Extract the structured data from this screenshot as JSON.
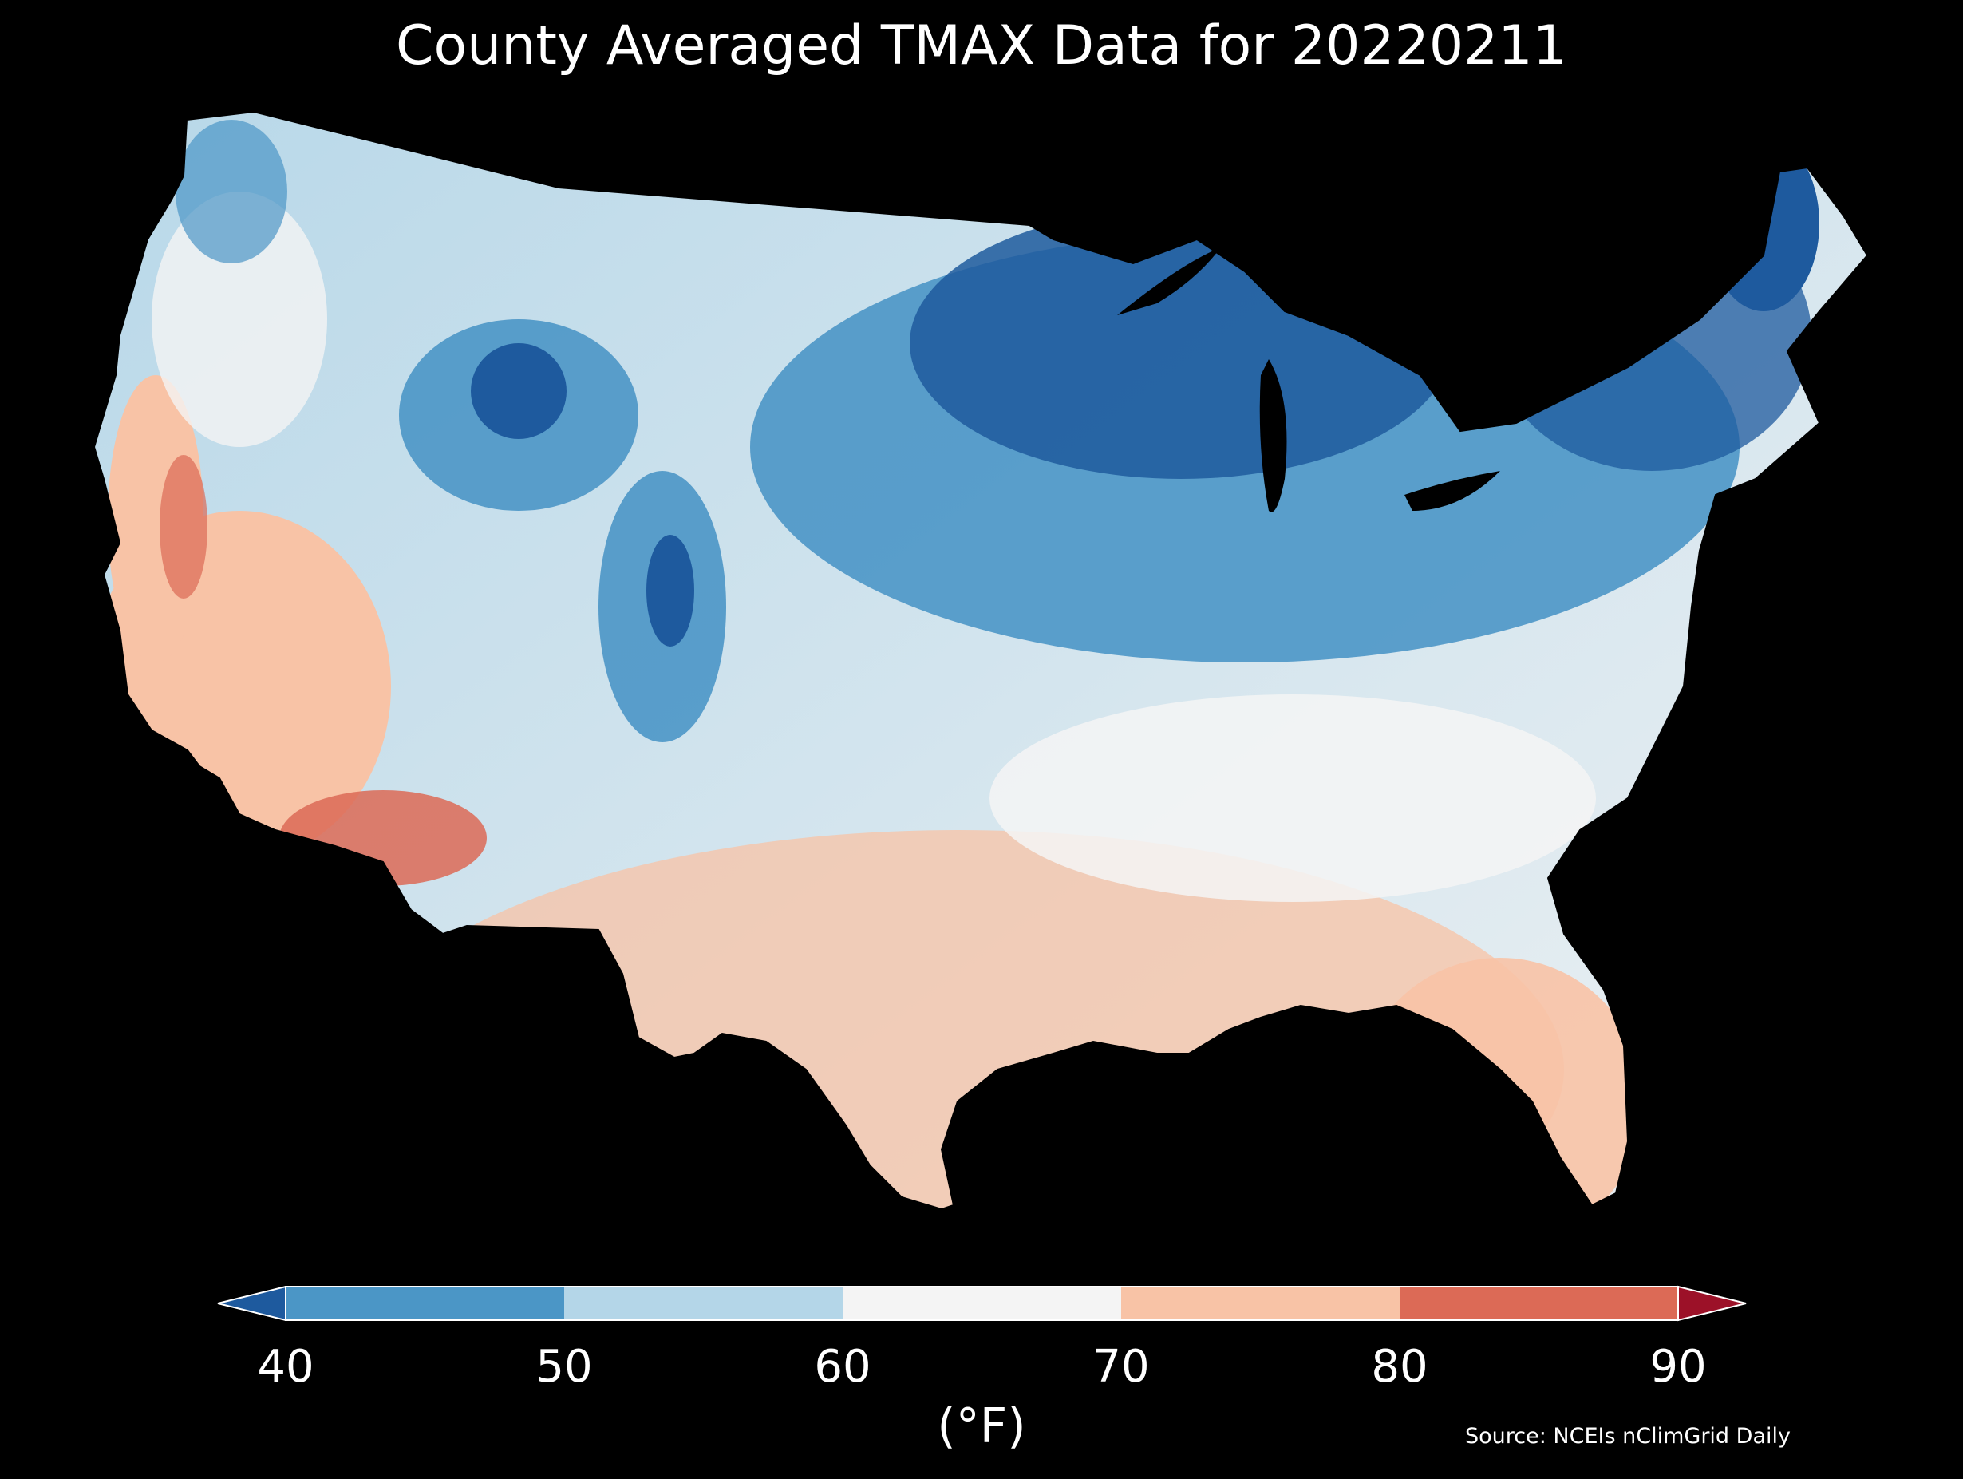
{
  "title": "County Averaged TMAX Data for 20220211",
  "colorbar": {
    "label": "(°F)",
    "ticks": [
      "40",
      "50",
      "60",
      "70",
      "80",
      "90"
    ],
    "bins": [
      {
        "range": "<40",
        "color": "#1e5a9e"
      },
      {
        "range": "40-50",
        "color": "#4b96c6"
      },
      {
        "range": "50-60",
        "color": "#b4d6e8"
      },
      {
        "range": "60-70",
        "color": "#f4f4f4"
      },
      {
        "range": "70-80",
        "color": "#f8c3a6"
      },
      {
        "range": "80-90",
        "color": "#dc6a56"
      },
      {
        "range": ">90",
        "color": "#9c1128"
      }
    ]
  },
  "source": "Source: NCEIs nClimGrid Daily",
  "map": {
    "type": "choropleth",
    "region": "Contiguous United States, county level",
    "variable": "TMAX",
    "date": "20220211",
    "background": "#000000"
  }
}
